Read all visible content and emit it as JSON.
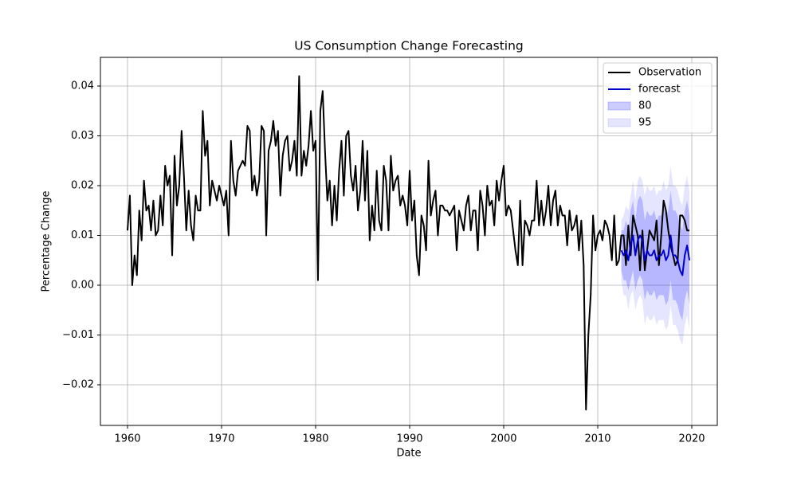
{
  "chart_data": {
    "type": "forecast",
    "title": "US Consumption Change Forecasting",
    "x_label": "Date",
    "y_label": "Percentage Change",
    "xlim": [
      1957.12,
      2022.71
    ],
    "ylim": [
      -0.02816,
      0.04576
    ],
    "xticks": [
      1960,
      1970,
      1980,
      1990,
      2000,
      2010,
      2020
    ],
    "yticks": [
      {
        "value": -0.02,
        "label": "−0.02"
      },
      {
        "value": -0.01,
        "label": "−0.01"
      },
      {
        "value": 0,
        "label": "0.00"
      },
      0.01,
      0.02,
      0.03,
      0.04
    ],
    "grid": true,
    "legend": "upper right",
    "series": [
      {
        "name": "Observation",
        "color": "#000000",
        "x": [
          1960,
          1960.25,
          1960.5,
          1960.75,
          1961,
          1961.25,
          1961.5,
          1961.75,
          1962,
          1962.25,
          1962.5,
          1962.75,
          1963,
          1963.25,
          1963.5,
          1963.75,
          1964,
          1964.25,
          1964.5,
          1964.75,
          1965,
          1965.25,
          1965.5,
          1965.75,
          1966,
          1966.25,
          1966.5,
          1966.75,
          1967,
          1967.25,
          1967.5,
          1967.75,
          1968,
          1968.25,
          1968.5,
          1968.75,
          1969,
          1969.25,
          1969.5,
          1969.75,
          1970,
          1970.25,
          1970.5,
          1970.75,
          1971,
          1971.25,
          1971.5,
          1971.75,
          1972,
          1972.25,
          1972.5,
          1972.75,
          1973,
          1973.25,
          1973.5,
          1973.75,
          1974,
          1974.25,
          1974.5,
          1974.75,
          1975,
          1975.25,
          1975.5,
          1975.75,
          1976,
          1976.25,
          1976.5,
          1976.75,
          1977,
          1977.25,
          1977.5,
          1977.75,
          1978,
          1978.25,
          1978.5,
          1978.75,
          1979,
          1979.25,
          1979.5,
          1979.75,
          1980,
          1980.25,
          1980.5,
          1980.75,
          1981,
          1981.25,
          1981.5,
          1981.75,
          1982,
          1982.25,
          1982.5,
          1982.75,
          1983,
          1983.25,
          1983.5,
          1983.75,
          1984,
          1984.25,
          1984.5,
          1984.75,
          1985,
          1985.25,
          1985.5,
          1985.75,
          1986,
          1986.25,
          1986.5,
          1986.75,
          1987,
          1987.25,
          1987.5,
          1987.75,
          1988,
          1988.25,
          1988.5,
          1988.75,
          1989,
          1989.25,
          1989.5,
          1989.75,
          1990,
          1990.25,
          1990.5,
          1990.75,
          1991,
          1991.25,
          1991.5,
          1991.75,
          1992,
          1992.25,
          1992.5,
          1992.75,
          1993,
          1993.25,
          1993.5,
          1993.75,
          1994,
          1994.25,
          1994.5,
          1994.75,
          1995,
          1995.25,
          1995.5,
          1995.75,
          1996,
          1996.25,
          1996.5,
          1996.75,
          1997,
          1997.25,
          1997.5,
          1997.75,
          1998,
          1998.25,
          1998.5,
          1998.75,
          1999,
          1999.25,
          1999.5,
          1999.75,
          2000,
          2000.25,
          2000.5,
          2000.75,
          2001,
          2001.25,
          2001.5,
          2001.75,
          2002,
          2002.25,
          2002.5,
          2002.75,
          2003,
          2003.25,
          2003.5,
          2003.75,
          2004,
          2004.25,
          2004.5,
          2004.75,
          2005,
          2005.25,
          2005.5,
          2005.75,
          2006,
          2006.25,
          2006.5,
          2006.75,
          2007,
          2007.25,
          2007.5,
          2007.75,
          2008,
          2008.25,
          2008.5,
          2008.75,
          2009,
          2009.25,
          2009.5,
          2009.75,
          2010,
          2010.25,
          2010.5,
          2010.75,
          2011,
          2011.25,
          2011.5,
          2011.75,
          2012,
          2012.25,
          2012.5,
          2012.75,
          2013,
          2013.25,
          2013.5,
          2013.75,
          2014,
          2014.25,
          2014.5,
          2014.75,
          2015,
          2015.25,
          2015.5,
          2015.75,
          2016,
          2016.25,
          2016.5,
          2016.75,
          2017,
          2017.25,
          2017.5,
          2017.75,
          2018,
          2018.25,
          2018.5,
          2018.75,
          2019,
          2019.25,
          2019.5,
          2019.75
        ],
        "values": [
          0.011,
          0.018,
          0.0,
          0.006,
          0.002,
          0.015,
          0.009,
          0.021,
          0.015,
          0.016,
          0.011,
          0.017,
          0.01,
          0.011,
          0.018,
          0.012,
          0.024,
          0.02,
          0.022,
          0.006,
          0.026,
          0.016,
          0.02,
          0.031,
          0.022,
          0.011,
          0.019,
          0.012,
          0.009,
          0.018,
          0.015,
          0.015,
          0.035,
          0.026,
          0.029,
          0.016,
          0.021,
          0.019,
          0.017,
          0.02,
          0.018,
          0.016,
          0.019,
          0.01,
          0.029,
          0.021,
          0.018,
          0.023,
          0.024,
          0.025,
          0.024,
          0.032,
          0.031,
          0.019,
          0.022,
          0.018,
          0.021,
          0.032,
          0.031,
          0.01,
          0.027,
          0.029,
          0.033,
          0.028,
          0.031,
          0.018,
          0.026,
          0.029,
          0.03,
          0.023,
          0.025,
          0.029,
          0.022,
          0.042,
          0.022,
          0.027,
          0.024,
          0.028,
          0.035,
          0.027,
          0.029,
          0.001,
          0.035,
          0.039,
          0.027,
          0.017,
          0.021,
          0.012,
          0.02,
          0.013,
          0.023,
          0.029,
          0.018,
          0.03,
          0.031,
          0.022,
          0.019,
          0.024,
          0.015,
          0.019,
          0.029,
          0.017,
          0.027,
          0.009,
          0.016,
          0.011,
          0.023,
          0.013,
          0.011,
          0.024,
          0.021,
          0.011,
          0.026,
          0.019,
          0.021,
          0.022,
          0.016,
          0.018,
          0.016,
          0.012,
          0.023,
          0.013,
          0.017,
          0.006,
          0.002,
          0.014,
          0.012,
          0.007,
          0.025,
          0.014,
          0.017,
          0.019,
          0.01,
          0.016,
          0.016,
          0.015,
          0.015,
          0.014,
          0.015,
          0.016,
          0.007,
          0.015,
          0.013,
          0.011,
          0.016,
          0.018,
          0.011,
          0.015,
          0.015,
          0.007,
          0.019,
          0.016,
          0.01,
          0.02,
          0.016,
          0.017,
          0.012,
          0.021,
          0.017,
          0.021,
          0.024,
          0.014,
          0.016,
          0.015,
          0.011,
          0.007,
          0.004,
          0.017,
          0.004,
          0.013,
          0.012,
          0.01,
          0.013,
          0.013,
          0.021,
          0.012,
          0.017,
          0.012,
          0.015,
          0.02,
          0.012,
          0.017,
          0.019,
          0.012,
          0.016,
          0.014,
          0.014,
          0.008,
          0.015,
          0.011,
          0.012,
          0.014,
          0.007,
          0.013,
          0.004,
          -0.025,
          -0.01,
          -0.002,
          0.014,
          0.007,
          0.01,
          0.011,
          0.009,
          0.013,
          0.012,
          0.01,
          0.005,
          0.014,
          0.004,
          0.005,
          0.01,
          0.01,
          0.004,
          0.012,
          0.006,
          0.014,
          0.012,
          0.01,
          0.003,
          0.011,
          0.003,
          0.007,
          0.011,
          0.01,
          0.009,
          0.013,
          0.004,
          0.01,
          0.017,
          0.015,
          0.011,
          0.008,
          0.006,
          0.004,
          0.005,
          0.014,
          0.014,
          0.013,
          0.011,
          0.011
        ]
      },
      {
        "name": "forecast",
        "color": "#0000cc",
        "x": [
          2012.5,
          2012.75,
          2013,
          2013.25,
          2013.5,
          2013.75,
          2014,
          2014.25,
          2014.5,
          2014.75,
          2015,
          2015.25,
          2015.5,
          2015.75,
          2016,
          2016.25,
          2016.5,
          2016.75,
          2017,
          2017.25,
          2017.5,
          2017.75,
          2018,
          2018.25,
          2018.5,
          2018.75,
          2019,
          2019.25,
          2019.5,
          2019.75
        ],
        "values": [
          0.007,
          0.006,
          0.007,
          0.005,
          0.008,
          0.01,
          0.006,
          0.009,
          0.01,
          0.009,
          0.005,
          0.007,
          0.006,
          0.006,
          0.007,
          0.005,
          0.006,
          0.006,
          0.007,
          0.005,
          0.006,
          0.01,
          0.006,
          0.006,
          0.005,
          0.003,
          0.002,
          0.006,
          0.008,
          0.005
        ]
      }
    ],
    "intervals": [
      {
        "name": "80",
        "color": "rgba(0,0,255,0.2)",
        "lower": [
          0.003,
          0.001,
          0.001,
          -0.001,
          0.001,
          0.003,
          -0.001,
          0.001,
          0.002,
          0.001,
          -0.003,
          -0.001,
          -0.002,
          -0.002,
          -0.001,
          -0.003,
          -0.002,
          -0.002,
          -0.002,
          -0.004,
          -0.003,
          0.001,
          -0.003,
          -0.003,
          -0.004,
          -0.006,
          -0.007,
          -0.003,
          -0.001,
          -0.004
        ],
        "upper": [
          0.011,
          0.011,
          0.013,
          0.011,
          0.015,
          0.017,
          0.013,
          0.017,
          0.018,
          0.017,
          0.013,
          0.015,
          0.014,
          0.014,
          0.015,
          0.013,
          0.014,
          0.014,
          0.016,
          0.014,
          0.015,
          0.019,
          0.015,
          0.015,
          0.014,
          0.012,
          0.011,
          0.015,
          0.017,
          0.014
        ]
      },
      {
        "name": "95",
        "color": "rgba(0,0,255,0.1)",
        "lower": [
          0.001,
          -0.002,
          -0.002,
          -0.005,
          -0.002,
          -0.001,
          -0.005,
          -0.003,
          -0.002,
          -0.003,
          -0.008,
          -0.006,
          -0.007,
          -0.007,
          -0.006,
          -0.008,
          -0.007,
          -0.007,
          -0.007,
          -0.009,
          -0.008,
          -0.004,
          -0.008,
          -0.008,
          -0.009,
          -0.011,
          -0.012,
          -0.008,
          -0.006,
          -0.009
        ],
        "upper": [
          0.013,
          0.014,
          0.016,
          0.015,
          0.018,
          0.021,
          0.017,
          0.021,
          0.022,
          0.021,
          0.018,
          0.02,
          0.019,
          0.019,
          0.02,
          0.018,
          0.019,
          0.019,
          0.021,
          0.019,
          0.02,
          0.024,
          0.02,
          0.02,
          0.019,
          0.017,
          0.016,
          0.02,
          0.022,
          0.019
        ]
      }
    ]
  }
}
